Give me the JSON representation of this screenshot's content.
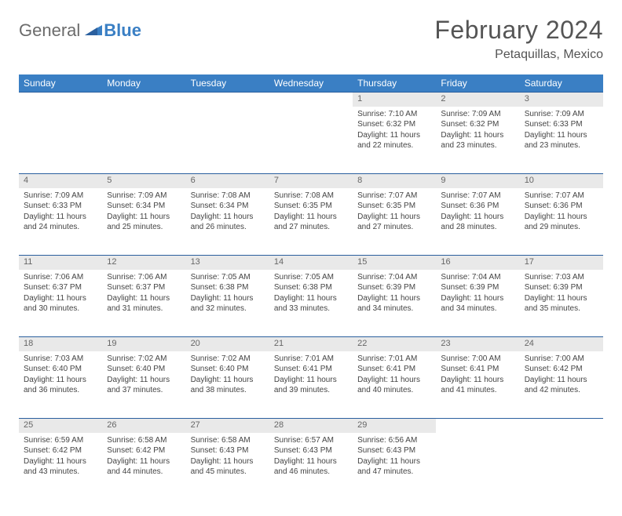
{
  "brand": {
    "general": "General",
    "blue": "Blue"
  },
  "title": {
    "month": "February 2024",
    "location": "Petaquillas, Mexico"
  },
  "colors": {
    "header_bg": "#3a7fc4",
    "header_text": "#ffffff",
    "daynum_bg": "#e9e9e9",
    "daynum_border": "#2a5f9e",
    "body_text": "#444"
  },
  "weekdays": [
    "Sunday",
    "Monday",
    "Tuesday",
    "Wednesday",
    "Thursday",
    "Friday",
    "Saturday"
  ],
  "weeks": [
    [
      null,
      null,
      null,
      null,
      {
        "n": "1",
        "sr": "Sunrise: 7:10 AM",
        "ss": "Sunset: 6:32 PM",
        "d1": "Daylight: 11 hours",
        "d2": "and 22 minutes."
      },
      {
        "n": "2",
        "sr": "Sunrise: 7:09 AM",
        "ss": "Sunset: 6:32 PM",
        "d1": "Daylight: 11 hours",
        "d2": "and 23 minutes."
      },
      {
        "n": "3",
        "sr": "Sunrise: 7:09 AM",
        "ss": "Sunset: 6:33 PM",
        "d1": "Daylight: 11 hours",
        "d2": "and 23 minutes."
      }
    ],
    [
      {
        "n": "4",
        "sr": "Sunrise: 7:09 AM",
        "ss": "Sunset: 6:33 PM",
        "d1": "Daylight: 11 hours",
        "d2": "and 24 minutes."
      },
      {
        "n": "5",
        "sr": "Sunrise: 7:09 AM",
        "ss": "Sunset: 6:34 PM",
        "d1": "Daylight: 11 hours",
        "d2": "and 25 minutes."
      },
      {
        "n": "6",
        "sr": "Sunrise: 7:08 AM",
        "ss": "Sunset: 6:34 PM",
        "d1": "Daylight: 11 hours",
        "d2": "and 26 minutes."
      },
      {
        "n": "7",
        "sr": "Sunrise: 7:08 AM",
        "ss": "Sunset: 6:35 PM",
        "d1": "Daylight: 11 hours",
        "d2": "and 27 minutes."
      },
      {
        "n": "8",
        "sr": "Sunrise: 7:07 AM",
        "ss": "Sunset: 6:35 PM",
        "d1": "Daylight: 11 hours",
        "d2": "and 27 minutes."
      },
      {
        "n": "9",
        "sr": "Sunrise: 7:07 AM",
        "ss": "Sunset: 6:36 PM",
        "d1": "Daylight: 11 hours",
        "d2": "and 28 minutes."
      },
      {
        "n": "10",
        "sr": "Sunrise: 7:07 AM",
        "ss": "Sunset: 6:36 PM",
        "d1": "Daylight: 11 hours",
        "d2": "and 29 minutes."
      }
    ],
    [
      {
        "n": "11",
        "sr": "Sunrise: 7:06 AM",
        "ss": "Sunset: 6:37 PM",
        "d1": "Daylight: 11 hours",
        "d2": "and 30 minutes."
      },
      {
        "n": "12",
        "sr": "Sunrise: 7:06 AM",
        "ss": "Sunset: 6:37 PM",
        "d1": "Daylight: 11 hours",
        "d2": "and 31 minutes."
      },
      {
        "n": "13",
        "sr": "Sunrise: 7:05 AM",
        "ss": "Sunset: 6:38 PM",
        "d1": "Daylight: 11 hours",
        "d2": "and 32 minutes."
      },
      {
        "n": "14",
        "sr": "Sunrise: 7:05 AM",
        "ss": "Sunset: 6:38 PM",
        "d1": "Daylight: 11 hours",
        "d2": "and 33 minutes."
      },
      {
        "n": "15",
        "sr": "Sunrise: 7:04 AM",
        "ss": "Sunset: 6:39 PM",
        "d1": "Daylight: 11 hours",
        "d2": "and 34 minutes."
      },
      {
        "n": "16",
        "sr": "Sunrise: 7:04 AM",
        "ss": "Sunset: 6:39 PM",
        "d1": "Daylight: 11 hours",
        "d2": "and 34 minutes."
      },
      {
        "n": "17",
        "sr": "Sunrise: 7:03 AM",
        "ss": "Sunset: 6:39 PM",
        "d1": "Daylight: 11 hours",
        "d2": "and 35 minutes."
      }
    ],
    [
      {
        "n": "18",
        "sr": "Sunrise: 7:03 AM",
        "ss": "Sunset: 6:40 PM",
        "d1": "Daylight: 11 hours",
        "d2": "and 36 minutes."
      },
      {
        "n": "19",
        "sr": "Sunrise: 7:02 AM",
        "ss": "Sunset: 6:40 PM",
        "d1": "Daylight: 11 hours",
        "d2": "and 37 minutes."
      },
      {
        "n": "20",
        "sr": "Sunrise: 7:02 AM",
        "ss": "Sunset: 6:40 PM",
        "d1": "Daylight: 11 hours",
        "d2": "and 38 minutes."
      },
      {
        "n": "21",
        "sr": "Sunrise: 7:01 AM",
        "ss": "Sunset: 6:41 PM",
        "d1": "Daylight: 11 hours",
        "d2": "and 39 minutes."
      },
      {
        "n": "22",
        "sr": "Sunrise: 7:01 AM",
        "ss": "Sunset: 6:41 PM",
        "d1": "Daylight: 11 hours",
        "d2": "and 40 minutes."
      },
      {
        "n": "23",
        "sr": "Sunrise: 7:00 AM",
        "ss": "Sunset: 6:41 PM",
        "d1": "Daylight: 11 hours",
        "d2": "and 41 minutes."
      },
      {
        "n": "24",
        "sr": "Sunrise: 7:00 AM",
        "ss": "Sunset: 6:42 PM",
        "d1": "Daylight: 11 hours",
        "d2": "and 42 minutes."
      }
    ],
    [
      {
        "n": "25",
        "sr": "Sunrise: 6:59 AM",
        "ss": "Sunset: 6:42 PM",
        "d1": "Daylight: 11 hours",
        "d2": "and 43 minutes."
      },
      {
        "n": "26",
        "sr": "Sunrise: 6:58 AM",
        "ss": "Sunset: 6:42 PM",
        "d1": "Daylight: 11 hours",
        "d2": "and 44 minutes."
      },
      {
        "n": "27",
        "sr": "Sunrise: 6:58 AM",
        "ss": "Sunset: 6:43 PM",
        "d1": "Daylight: 11 hours",
        "d2": "and 45 minutes."
      },
      {
        "n": "28",
        "sr": "Sunrise: 6:57 AM",
        "ss": "Sunset: 6:43 PM",
        "d1": "Daylight: 11 hours",
        "d2": "and 46 minutes."
      },
      {
        "n": "29",
        "sr": "Sunrise: 6:56 AM",
        "ss": "Sunset: 6:43 PM",
        "d1": "Daylight: 11 hours",
        "d2": "and 47 minutes."
      },
      null,
      null
    ]
  ]
}
